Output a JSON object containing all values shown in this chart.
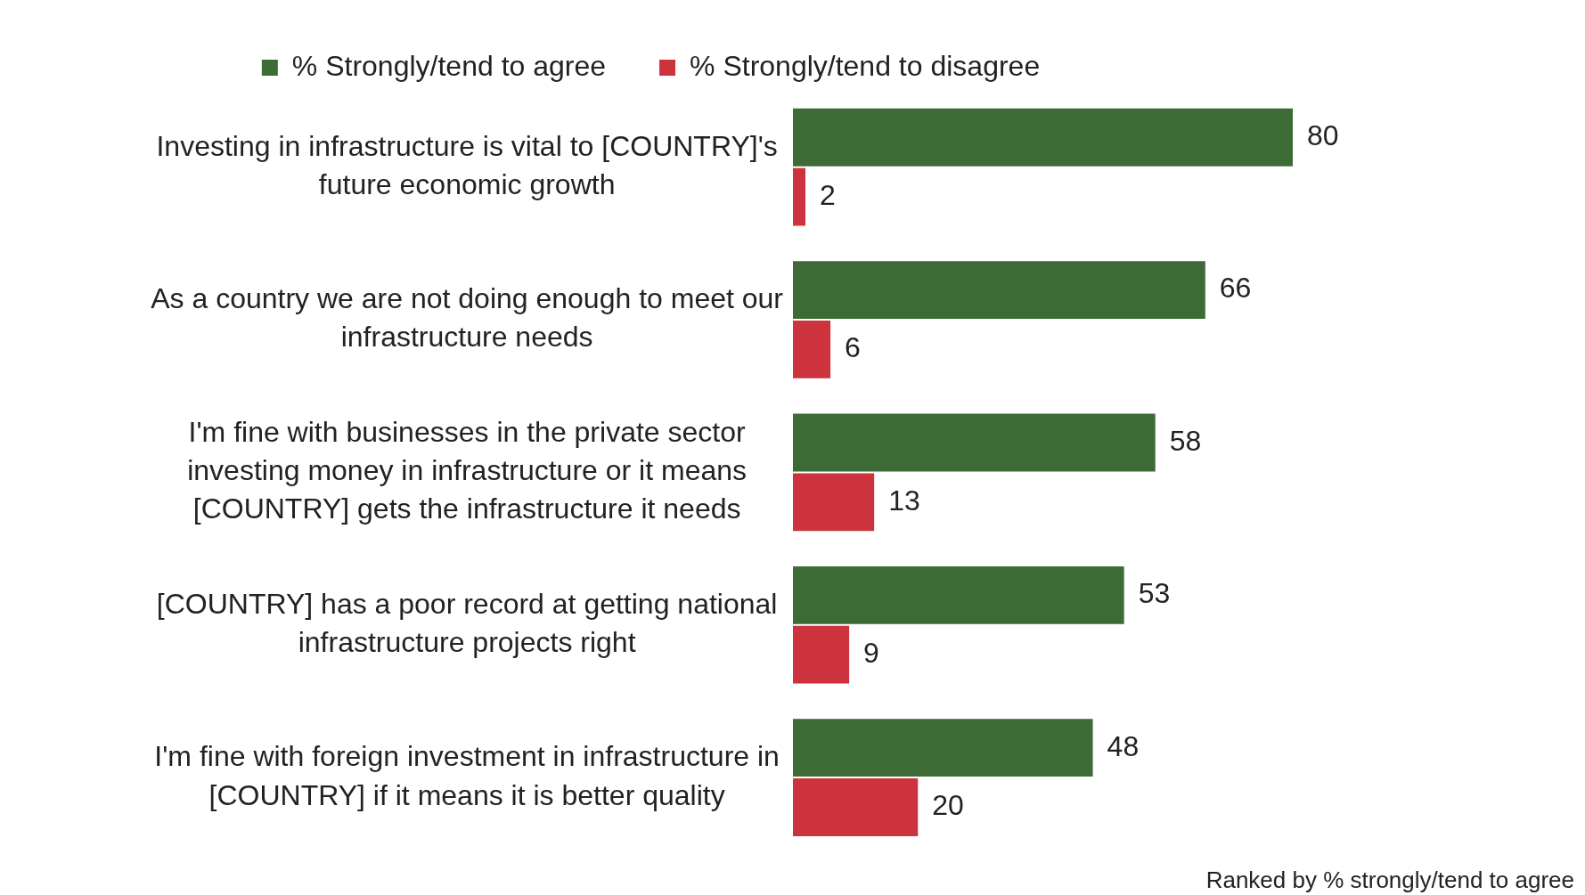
{
  "chart_data": {
    "type": "bar",
    "orientation": "horizontal",
    "legend": "top",
    "data_labels": true,
    "categories": [
      "Investing in infrastructure is vital to [COUNTRY]'s future economic growth",
      "As a country we are not doing enough to meet our infrastructure needs",
      "I'm fine with businesses in the private sector investing money in infrastructure or it means [COUNTRY] gets the infrastructure it needs",
      "[COUNTRY] has a poor record at getting national infrastructure projects right",
      "I'm fine with foreign investment in infrastructure in [COUNTRY] if it means it is better quality"
    ],
    "series": [
      {
        "name": "% Strongly/tend to agree",
        "color": "#3d6b35",
        "values": [
          80,
          66,
          58,
          53,
          48
        ]
      },
      {
        "name": "% Strongly/tend to disagree",
        "color": "#cc333d",
        "values": [
          2,
          6,
          13,
          9,
          20
        ]
      }
    ],
    "annotations": [
      "Ranked by % strongly/tend to agree"
    ]
  }
}
